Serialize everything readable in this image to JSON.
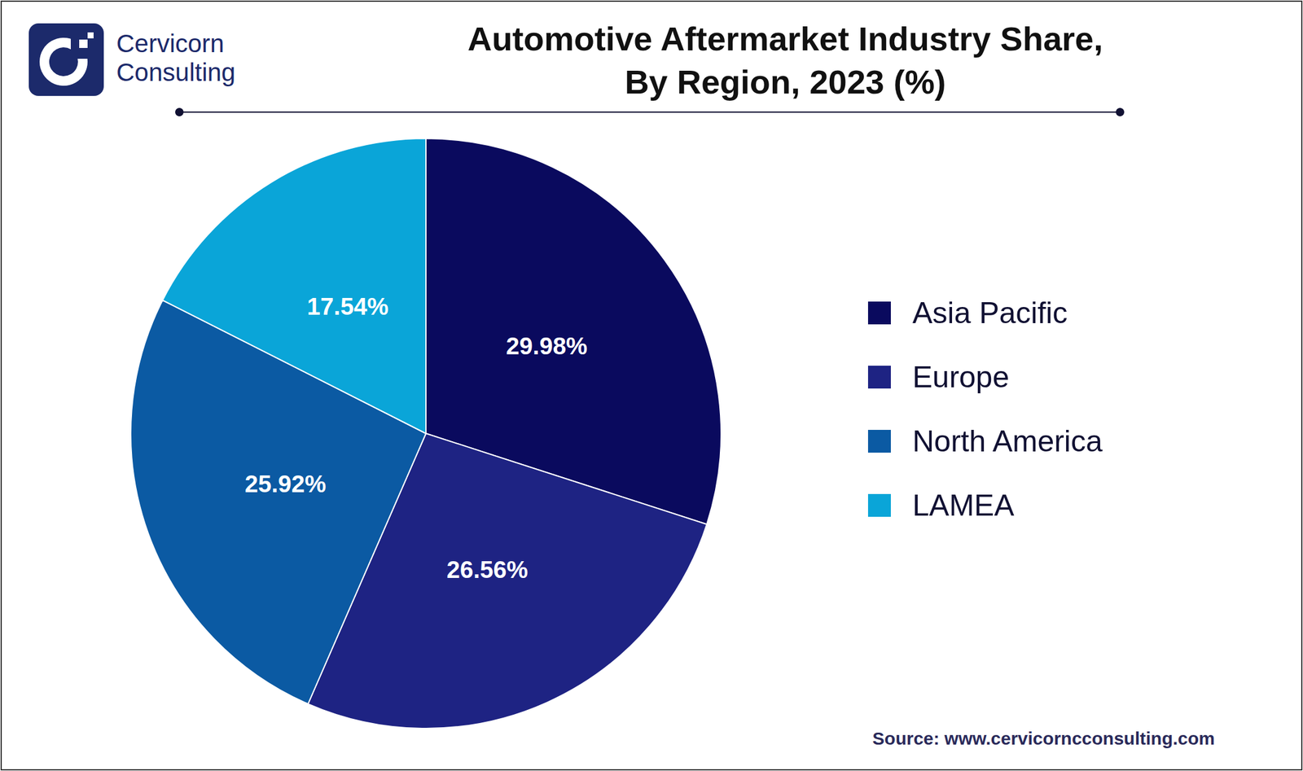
{
  "chart_data": {
    "type": "pie",
    "title": "Automotive Aftermarket Industry Share,\nBy Region, 2023 (%)",
    "categories": [
      "Asia Pacific",
      "Europe",
      "North America",
      "LAMEA"
    ],
    "values": [
      29.98,
      26.56,
      25.92,
      17.54
    ],
    "value_labels": [
      "29.98%",
      "26.56%",
      "25.92%",
      "17.54%"
    ],
    "colors": [
      "#0a0a5e",
      "#1e2383",
      "#0b5aa3",
      "#0aa5d8"
    ],
    "data_labels": true,
    "legend": "right",
    "logo": "Cervicorn\nConsulting",
    "source": "Source: www.cervicorncconsulting.com"
  }
}
